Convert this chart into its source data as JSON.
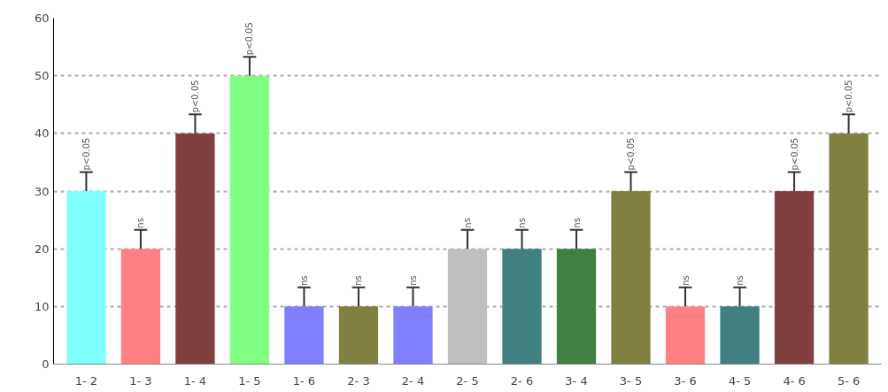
{
  "chart_data": {
    "type": "bar",
    "categories": [
      "1- 2",
      "1- 3",
      "1- 4",
      "1- 5",
      "1- 6",
      "2- 3",
      "2- 4",
      "2- 5",
      "2- 6",
      "3- 4",
      "3- 5",
      "3- 6",
      "4- 5",
      "4- 6",
      "5- 6"
    ],
    "values": [
      30,
      20,
      40,
      50,
      10,
      10,
      10,
      20,
      20,
      20,
      30,
      10,
      10,
      30,
      40
    ],
    "colors": [
      "#80ffff",
      "#ff8080",
      "#804040",
      "#80ff80",
      "#8080ff",
      "#808040",
      "#8080ff",
      "#c0c0c0",
      "#408080",
      "#408040",
      "#808040",
      "#ff8080",
      "#408080",
      "#804040",
      "#808040"
    ],
    "errors": [
      [
        30,
        33.3
      ],
      [
        20,
        23.3
      ],
      [
        40,
        43.3
      ],
      [
        50,
        53.3
      ],
      [
        10,
        13.3
      ],
      [
        10,
        13.3
      ],
      [
        10,
        13.3
      ],
      [
        20,
        23.3
      ],
      [
        20,
        23.3
      ],
      [
        20,
        23.3
      ],
      [
        30,
        33.3
      ],
      [
        10,
        13.3
      ],
      [
        10,
        13.3
      ],
      [
        30,
        33.3
      ],
      [
        40,
        43.3
      ]
    ],
    "value_labels": [
      "p<0.05",
      "ns",
      "p<0.05",
      "p<0.05",
      "ns",
      "ns",
      "ns",
      "ns",
      "ns",
      "ns",
      "p<0.05",
      "ns",
      "ns",
      "p<0.05",
      "p<0.05"
    ],
    "ylim": [
      0,
      60
    ],
    "yticks": [
      0,
      10,
      20,
      30,
      40,
      50,
      60
    ],
    "grid": "y"
  }
}
